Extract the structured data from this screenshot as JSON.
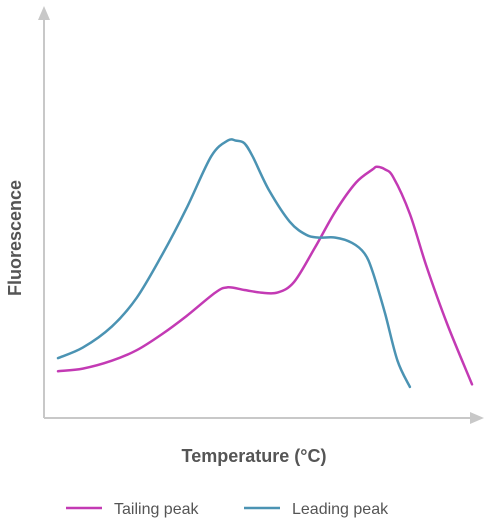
{
  "chart_data": {
    "type": "line",
    "title": "",
    "xlabel": "Temperature (°C)",
    "ylabel": "Fluorescence",
    "xlim": [
      0,
      100
    ],
    "ylim": [
      0,
      100
    ],
    "grid": false,
    "legend_position": "bottom",
    "ticks": "none",
    "series": [
      {
        "name": "Tailing peak",
        "color": "#c33ab4",
        "x": [
          0,
          6,
          13,
          19,
          25,
          31,
          38,
          41,
          45,
          49,
          53,
          57,
          62,
          67,
          72,
          76,
          77,
          79,
          81,
          85,
          89,
          94,
          100
        ],
        "y": [
          11,
          12,
          15,
          19,
          25,
          32,
          41,
          43,
          42,
          41,
          41,
          45,
          58,
          72,
          83,
          88,
          89,
          88,
          85,
          71,
          51,
          29,
          6
        ]
      },
      {
        "name": "Leading peak",
        "color": "#4b93b3",
        "x": [
          0,
          6,
          13,
          19,
          25,
          31,
          37,
          41,
          43,
          45,
          47,
          51,
          56,
          60,
          63,
          67,
          71,
          74,
          76,
          79,
          82,
          85
        ],
        "y": [
          16,
          20,
          28,
          39,
          55,
          73,
          93,
          99,
          99,
          98,
          93,
          80,
          68,
          63,
          62,
          62,
          60,
          56,
          49,
          33,
          15,
          5
        ]
      }
    ]
  }
}
